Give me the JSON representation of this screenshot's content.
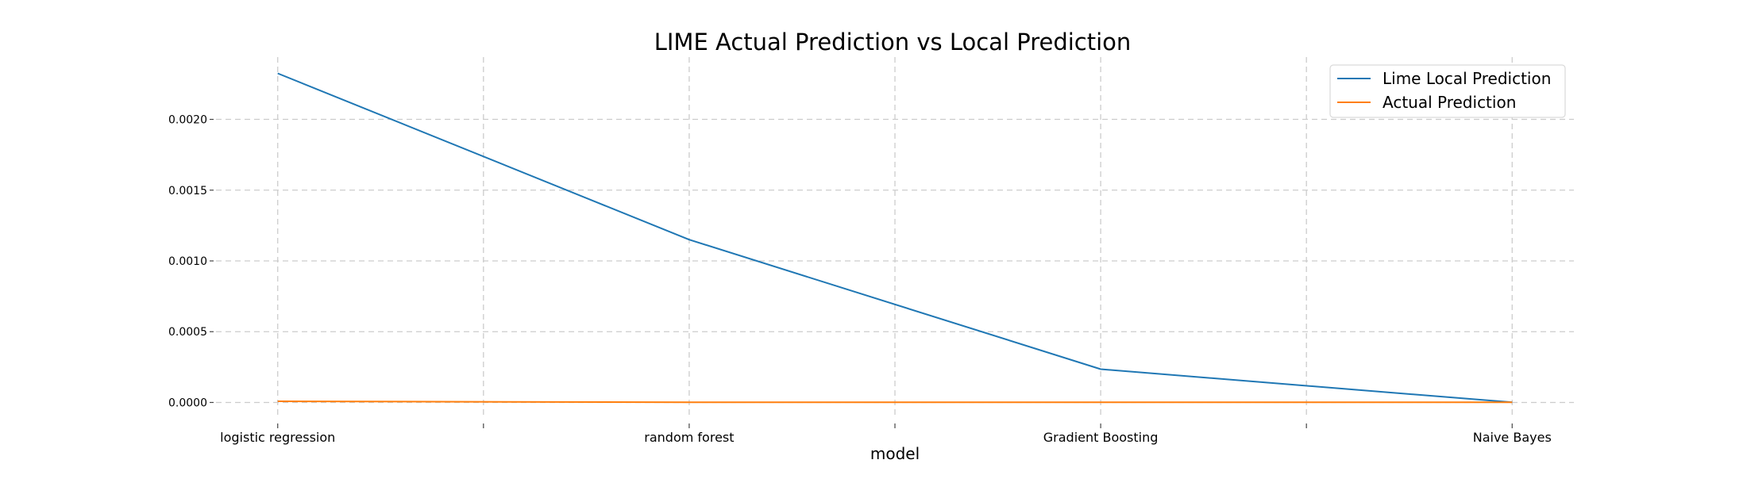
{
  "chart_data": {
    "type": "line",
    "title": "LIME Actual Prediction vs Local Prediction",
    "xlabel": "model",
    "ylabel": "",
    "categories": [
      "logistic regression",
      "random forest",
      "Gradient Boosting",
      "Naive Bayes"
    ],
    "x": [
      0,
      1,
      2,
      3,
      4,
      5,
      6
    ],
    "xtick_labels": [
      "logistic regression",
      "",
      "random forest",
      "",
      "Gradient Boosting",
      "",
      "Naive Bayes"
    ],
    "yticks": [
      0.0,
      0.0005,
      0.001,
      0.0015,
      0.002
    ],
    "ytick_labels": [
      "0.0000",
      "0.0005",
      "0.0010",
      "0.0015",
      "0.0020"
    ],
    "ylim": [
      -0.000115,
      0.00244
    ],
    "xlim": [
      -0.3,
      6.3
    ],
    "grid": true,
    "legend_position": "top-right",
    "series": [
      {
        "name": "Lime Local Prediction",
        "color": "#1f77b4",
        "x": [
          0,
          2,
          4,
          6
        ],
        "values": [
          0.002325,
          0.00115,
          0.000235,
          1e-06
        ]
      },
      {
        "name": "Actual Prediction",
        "color": "#ff7f0e",
        "x": [
          0,
          2,
          4,
          6
        ],
        "values": [
          8e-06,
          1e-06,
          1e-06,
          1e-06
        ]
      }
    ]
  }
}
